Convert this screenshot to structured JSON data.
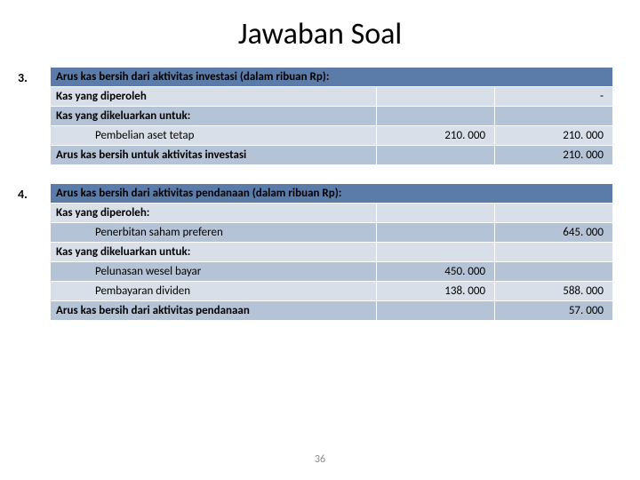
{
  "title": "Jawaban Soal",
  "page_number": "36",
  "colors": {
    "header_bg": "#5b7ca8",
    "row_light": "#d8dfe9",
    "row_dark": "#b5c3d6",
    "border": "#ffffff"
  },
  "section1": {
    "number": "3.",
    "header": "Arus kas bersih dari aktivitas investasi (dalam ribuan Rp):",
    "rows": [
      {
        "label": "Kas yang diperoleh",
        "c2": "",
        "c3": "-",
        "bold": true,
        "shade": "light",
        "indent": false
      },
      {
        "label": "Kas yang dikeluarkan untuk:",
        "c2": "",
        "c3": "",
        "bold": true,
        "shade": "dark",
        "indent": false
      },
      {
        "label": "Pembelian aset tetap",
        "c2": "210. 000",
        "c3": "210. 000",
        "bold": false,
        "shade": "light",
        "indent": true
      },
      {
        "label": "Arus kas bersih untuk aktivitas investasi",
        "c2": "",
        "c3": "210. 000",
        "bold": true,
        "shade": "dark",
        "indent": false
      }
    ]
  },
  "section2": {
    "number": "4.",
    "header": "Arus kas bersih dari aktivitas pendanaan (dalam ribuan Rp):",
    "rows": [
      {
        "label": "Kas yang diperoleh:",
        "c2": "",
        "c3": "",
        "bold": true,
        "shade": "light",
        "indent": false
      },
      {
        "label": "Penerbitan saham preferen",
        "c2": "",
        "c3": "645. 000",
        "bold": false,
        "shade": "dark",
        "indent": true
      },
      {
        "label": "Kas yang dikeluarkan untuk:",
        "c2": "",
        "c3": "",
        "bold": true,
        "shade": "light",
        "indent": false
      },
      {
        "label": "Pelunasan wesel bayar",
        "c2": "450. 000",
        "c3": "",
        "bold": false,
        "shade": "dark",
        "indent": true
      },
      {
        "label": "Pembayaran dividen",
        "c2": "138. 000",
        "c3": "588. 000",
        "bold": false,
        "shade": "light",
        "indent": true
      },
      {
        "label": "Arus kas bersih dari aktivitas pendanaan",
        "c2": "",
        "c3": "57. 000",
        "bold": true,
        "shade": "dark",
        "indent": false
      }
    ]
  }
}
